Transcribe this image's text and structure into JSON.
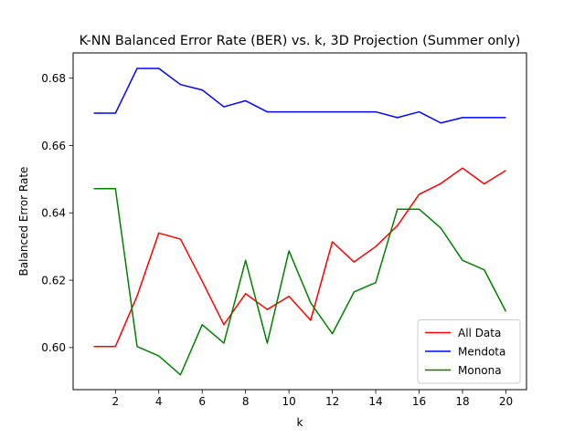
{
  "chart_data": {
    "type": "line",
    "title": "K-NN Balanced Error Rate (BER) vs. k, 3D Projection (Summer only)",
    "xlabel": "k",
    "ylabel": "Balanced Error Rate",
    "x": [
      1,
      2,
      3,
      4,
      5,
      6,
      7,
      8,
      9,
      10,
      11,
      12,
      13,
      14,
      15,
      16,
      17,
      18,
      19,
      20
    ],
    "xlim": [
      0.05,
      20.95
    ],
    "ylim": [
      0.5875,
      0.6875
    ],
    "xticks": [
      2,
      4,
      6,
      8,
      10,
      12,
      14,
      16,
      18,
      20
    ],
    "xtick_labels": [
      "2",
      "4",
      "6",
      "8",
      "10",
      "12",
      "14",
      "16",
      "18",
      "20"
    ],
    "yticks": [
      0.6,
      0.62,
      0.64,
      0.66,
      0.68
    ],
    "ytick_labels": [
      "0.60",
      "0.62",
      "0.64",
      "0.66",
      "0.68"
    ],
    "grid": false,
    "legend_position": "lower right",
    "series": [
      {
        "name": "All Data",
        "color": "#ff0000",
        "values": [
          0.6003,
          0.6003,
          0.6153,
          0.634,
          0.6322,
          0.6197,
          0.6068,
          0.616,
          0.6113,
          0.6152,
          0.6081,
          0.6314,
          0.6254,
          0.63,
          0.6362,
          0.6455,
          0.6487,
          0.6533,
          0.6486,
          0.6526
        ]
      },
      {
        "name": "Mendota",
        "color": "#0000ff",
        "values": [
          0.6696,
          0.6696,
          0.6829,
          0.6829,
          0.6781,
          0.6765,
          0.6715,
          0.6733,
          0.67,
          0.67,
          0.67,
          0.67,
          0.67,
          0.67,
          0.6683,
          0.67,
          0.6667,
          0.6683,
          0.6683,
          0.6683
        ]
      },
      {
        "name": "Monona",
        "color": "#008000",
        "values": [
          0.6472,
          0.6472,
          0.6003,
          0.5975,
          0.5919,
          0.6068,
          0.6013,
          0.6259,
          0.6013,
          0.6287,
          0.6133,
          0.6041,
          0.6165,
          0.6193,
          0.6411,
          0.6411,
          0.6355,
          0.6259,
          0.6231,
          0.6107
        ]
      }
    ]
  }
}
